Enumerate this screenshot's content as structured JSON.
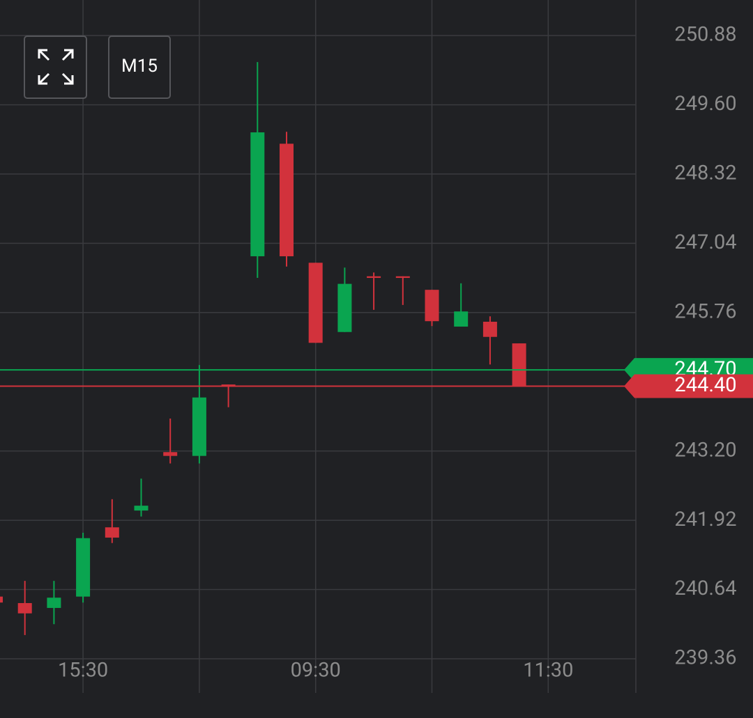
{
  "toolbar": {
    "timeframe": "M15"
  },
  "chart_data": {
    "type": "candlestick",
    "categories": [
      null,
      null,
      null,
      "15:30",
      null,
      null,
      null,
      null,
      null,
      null,
      null,
      "09:30",
      null,
      null,
      null,
      null,
      null,
      null,
      null,
      "11:30"
    ],
    "open": [
      240.51,
      240.39,
      240.3,
      240.51,
      241.79,
      242.1,
      243.18,
      243.11,
      244.43,
      246.8,
      248.88,
      246.68,
      245.4,
      246.43,
      246.43,
      246.18,
      245.5,
      245.59,
      245.19,
      null
    ],
    "high": [
      240.51,
      240.8,
      240.8,
      241.69,
      242.31,
      242.69,
      243.8,
      244.79,
      244.43,
      250.39,
      249.1,
      246.68,
      246.59,
      246.5,
      246.43,
      246.18,
      246.3,
      245.69,
      245.19,
      null
    ],
    "low": [
      240.4,
      239.8,
      240.0,
      240.4,
      241.5,
      241.99,
      242.97,
      242.97,
      244.01,
      246.4,
      246.61,
      245.2,
      245.4,
      245.81,
      245.9,
      245.51,
      245.5,
      244.8,
      244.4,
      null
    ],
    "close": [
      240.4,
      240.2,
      240.49,
      241.59,
      241.6,
      242.19,
      243.11,
      244.19,
      244.41,
      249.09,
      246.8,
      245.2,
      246.29,
      246.4,
      246.4,
      245.6,
      245.78,
      245.31,
      244.41,
      null
    ],
    "up_color": "#0aa550",
    "down_color": "#d2323c",
    "ylim": [
      239.36,
      250.88
    ],
    "yticks": [
      239.36,
      240.64,
      241.92,
      {
        "value": 243.2,
        "label": "243.20"
      },
      245.76,
      247.04,
      248.32,
      {
        "value": 249.6,
        "label": "249.60"
      },
      250.88
    ],
    "price_lines": [
      {
        "value": 244.7,
        "label": "244.70",
        "color": "#0aa550"
      },
      {
        "value": 244.4,
        "label": "244.40",
        "color": "#d2323c"
      }
    ],
    "grid": true
  }
}
